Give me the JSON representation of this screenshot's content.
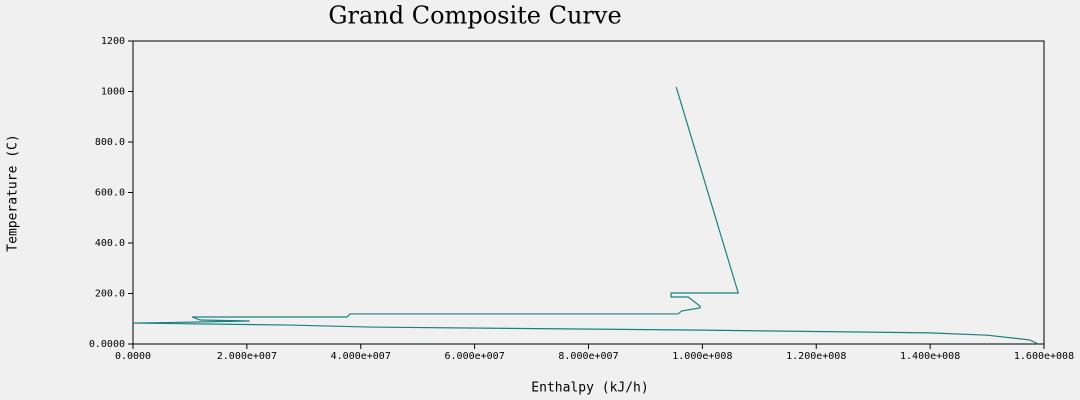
{
  "chart_data": {
    "type": "line",
    "title": "Grand Composite Curve",
    "xlabel": "Enthalpy (kJ/h)",
    "ylabel": "Temperature (C)",
    "x": [
      95400000,
      106300000,
      94500000,
      94500000,
      97500000,
      99600000,
      99600000,
      96400000,
      95700000,
      38100000,
      37600000,
      10400000,
      11800000,
      20500000,
      6100000,
      0,
      27600000,
      41600000,
      100000000,
      140000000,
      150000000,
      157500000,
      159000000
    ],
    "series": [
      {
        "color": "#1a8080",
        "values": [
          1018,
          202,
          202,
          186,
          186,
          150,
          143,
          131,
          119,
          119,
          107,
          107,
          95,
          91,
          85,
          83,
          75,
          67,
          55,
          44,
          35,
          16,
          0
        ]
      }
    ],
    "xlim": [
      0,
      160000000
    ],
    "ylim": [
      0,
      1200
    ],
    "xticks": [
      {
        "value": 0,
        "label": "0.0000"
      },
      {
        "value": 20000000,
        "label": "2.000e+007"
      },
      {
        "value": 40000000,
        "label": "4.000e+007"
      },
      {
        "value": 60000000,
        "label": "6.000e+007"
      },
      {
        "value": 80000000,
        "label": "8.000e+007"
      },
      {
        "value": 100000000,
        "label": "1.000e+008"
      },
      {
        "value": 120000000,
        "label": "1.200e+008"
      },
      {
        "value": 140000000,
        "label": "1.400e+008"
      },
      {
        "value": 160000000,
        "label": "1.600e+008"
      }
    ],
    "yticks": [
      {
        "value": 0,
        "label": "0.0000"
      },
      {
        "value": 200,
        "label": "200.0"
      },
      {
        "value": 400,
        "label": "400.0"
      },
      {
        "value": 600,
        "label": "600.0"
      },
      {
        "value": 800,
        "label": "800.0"
      },
      1000,
      1200
    ],
    "grid": false
  }
}
